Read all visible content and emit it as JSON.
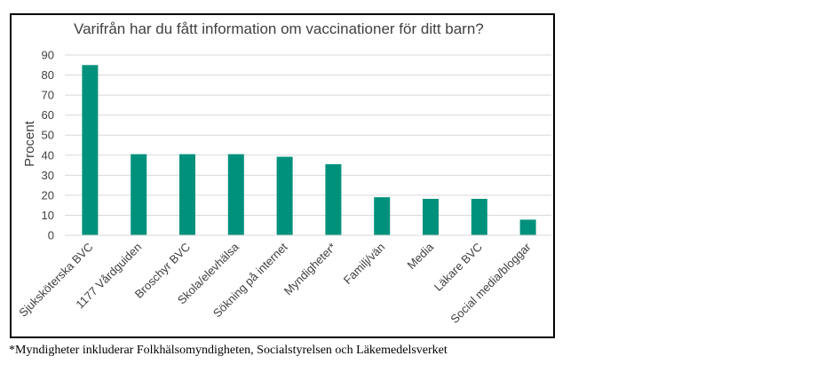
{
  "chart_data": {
    "type": "bar",
    "title": "Varifrån har du fått information om vaccinationer för ditt barn?",
    "ylabel": "Procent",
    "xlabel": "",
    "ylim": [
      0,
      90
    ],
    "yticks": [
      0,
      10,
      20,
      30,
      40,
      50,
      60,
      70,
      80,
      90
    ],
    "grid": true,
    "bar_color": "#00917C",
    "categories": [
      "Sjuksköterska BVC",
      "1177 Vårdguiden",
      "Broschyr BVC",
      "Skola/elevhälsa",
      "Sökning på internet",
      "Myndigheter*",
      "Familj/vän",
      "Media",
      "Läkare BVC",
      "Social media/bloggar"
    ],
    "values": [
      85,
      40.5,
      40.5,
      40.5,
      39.2,
      35.5,
      19,
      18.2,
      18.2,
      7.8
    ]
  },
  "footnote": "*Myndigheter inkluderar Folkhälsomyndigheten, Socialstyrelsen och Läkemedelsverket"
}
